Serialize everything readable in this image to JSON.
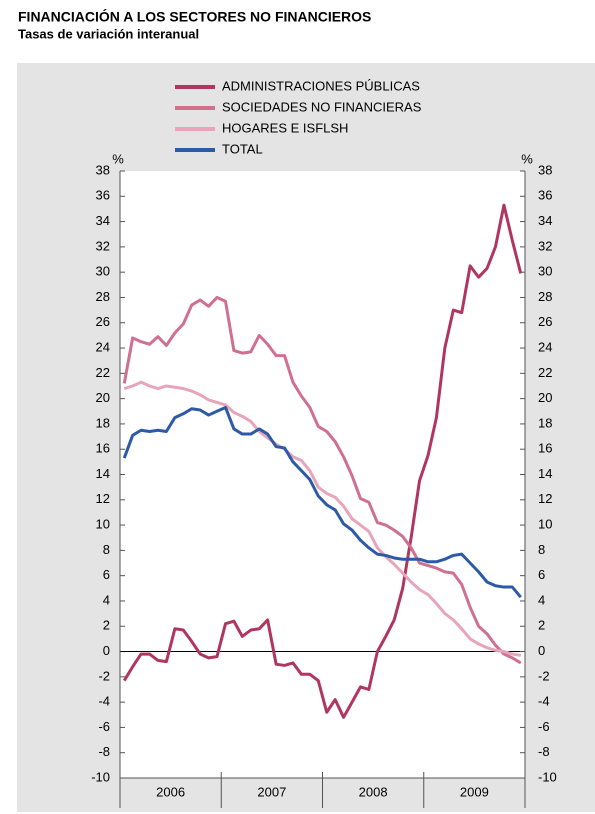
{
  "chart_data": {
    "type": "line",
    "title": "FINANCIACIÓN A LOS SECTORES NO FINANCIEROS",
    "subtitle": "Tasas de variación interanual",
    "y_unit": "%",
    "x": [
      2006.042,
      2006.125,
      2006.208,
      2006.292,
      2006.375,
      2006.458,
      2006.542,
      2006.625,
      2006.708,
      2006.792,
      2006.875,
      2006.958,
      2007.042,
      2007.125,
      2007.208,
      2007.292,
      2007.375,
      2007.458,
      2007.542,
      2007.625,
      2007.708,
      2007.792,
      2007.875,
      2007.958,
      2008.042,
      2008.125,
      2008.208,
      2008.292,
      2008.375,
      2008.458,
      2008.542,
      2008.625,
      2008.708,
      2008.792,
      2008.875,
      2008.958,
      2009.042,
      2009.125,
      2009.208,
      2009.292,
      2009.375,
      2009.458,
      2009.542,
      2009.625,
      2009.708,
      2009.792,
      2009.875,
      2009.958
    ],
    "xlim": [
      2006,
      2010
    ],
    "xticks": [
      2006,
      2007,
      2008,
      2009,
      2010
    ],
    "x_labels": [
      "2006",
      "2007",
      "2008",
      "2009"
    ],
    "ylim": [
      -10,
      38
    ],
    "yticks": [
      -10,
      -8,
      -6,
      -4,
      -2,
      0,
      2,
      4,
      6,
      8,
      10,
      12,
      14,
      16,
      18,
      20,
      22,
      24,
      26,
      28,
      30,
      32,
      34,
      36,
      38
    ],
    "y2lim": [
      -10,
      38
    ],
    "y2ticks": [
      -10,
      -8,
      -6,
      -4,
      -2,
      0,
      2,
      4,
      6,
      8,
      10,
      12,
      14,
      16,
      18,
      20,
      22,
      24,
      26,
      28,
      30,
      32,
      34,
      36,
      38
    ],
    "series": [
      {
        "name": "ADMINISTRACIONES PÚBLICAS",
        "color": "#b0365f",
        "values": [
          -2.3,
          -1.2,
          -0.2,
          -0.2,
          -0.7,
          -0.8,
          1.8,
          1.7,
          0.8,
          -0.2,
          -0.5,
          -0.4,
          2.2,
          2.4,
          1.2,
          1.7,
          1.8,
          2.5,
          -1.0,
          -1.1,
          -0.9,
          -1.8,
          -1.8,
          -2.3,
          -4.8,
          -3.8,
          -5.2,
          -4.0,
          -2.8,
          -3.0,
          0.0,
          1.2,
          2.5,
          5.0,
          9.0,
          13.5,
          15.5,
          18.5,
          24.0,
          27.0,
          26.8,
          30.5,
          29.6,
          30.3,
          32.0,
          35.3,
          32.5,
          29.9
        ]
      },
      {
        "name": "SOCIEDADES NO FINANCIERAS",
        "color": "#d0708f",
        "values": [
          21.2,
          24.8,
          24.5,
          24.3,
          24.9,
          24.2,
          25.2,
          25.9,
          27.4,
          27.8,
          27.3,
          28.0,
          27.7,
          23.8,
          23.6,
          23.7,
          25.0,
          24.3,
          23.4,
          23.4,
          21.3,
          20.2,
          19.3,
          17.8,
          17.4,
          16.6,
          15.4,
          13.9,
          12.1,
          11.8,
          10.2,
          10.0,
          9.6,
          9.1,
          8.2,
          7.0,
          6.8,
          6.6,
          6.3,
          6.2,
          5.3,
          3.5,
          2.0,
          1.4,
          0.5,
          -0.2,
          -0.5,
          -0.9
        ]
      },
      {
        "name": "HOGARES E ISFLSH",
        "color": "#e8a4bb",
        "values": [
          20.8,
          21.0,
          21.3,
          21.0,
          20.8,
          21.0,
          20.9,
          20.8,
          20.6,
          20.3,
          19.9,
          19.7,
          19.5,
          18.9,
          18.6,
          18.2,
          17.4,
          16.9,
          16.4,
          16.0,
          15.4,
          15.1,
          14.3,
          13.0,
          12.5,
          12.2,
          11.5,
          10.5,
          10.0,
          9.5,
          8.2,
          7.5,
          6.9,
          6.2,
          5.5,
          4.9,
          4.5,
          3.8,
          3.0,
          2.5,
          1.8,
          1.0,
          0.6,
          0.3,
          0.1,
          0.0,
          -0.2,
          -0.3
        ]
      },
      {
        "name": "TOTAL",
        "color": "#2d5aa6",
        "values": [
          15.3,
          17.1,
          17.5,
          17.4,
          17.5,
          17.4,
          18.5,
          18.8,
          19.2,
          19.1,
          18.7,
          19.0,
          19.3,
          17.6,
          17.2,
          17.2,
          17.6,
          17.2,
          16.2,
          16.1,
          15.0,
          14.3,
          13.6,
          12.3,
          11.6,
          11.2,
          10.1,
          9.6,
          8.8,
          8.2,
          7.7,
          7.6,
          7.4,
          7.3,
          7.3,
          7.3,
          7.1,
          7.1,
          7.3,
          7.6,
          7.7,
          7.0,
          6.3,
          5.5,
          5.2,
          5.1,
          5.1,
          4.3
        ]
      }
    ]
  }
}
